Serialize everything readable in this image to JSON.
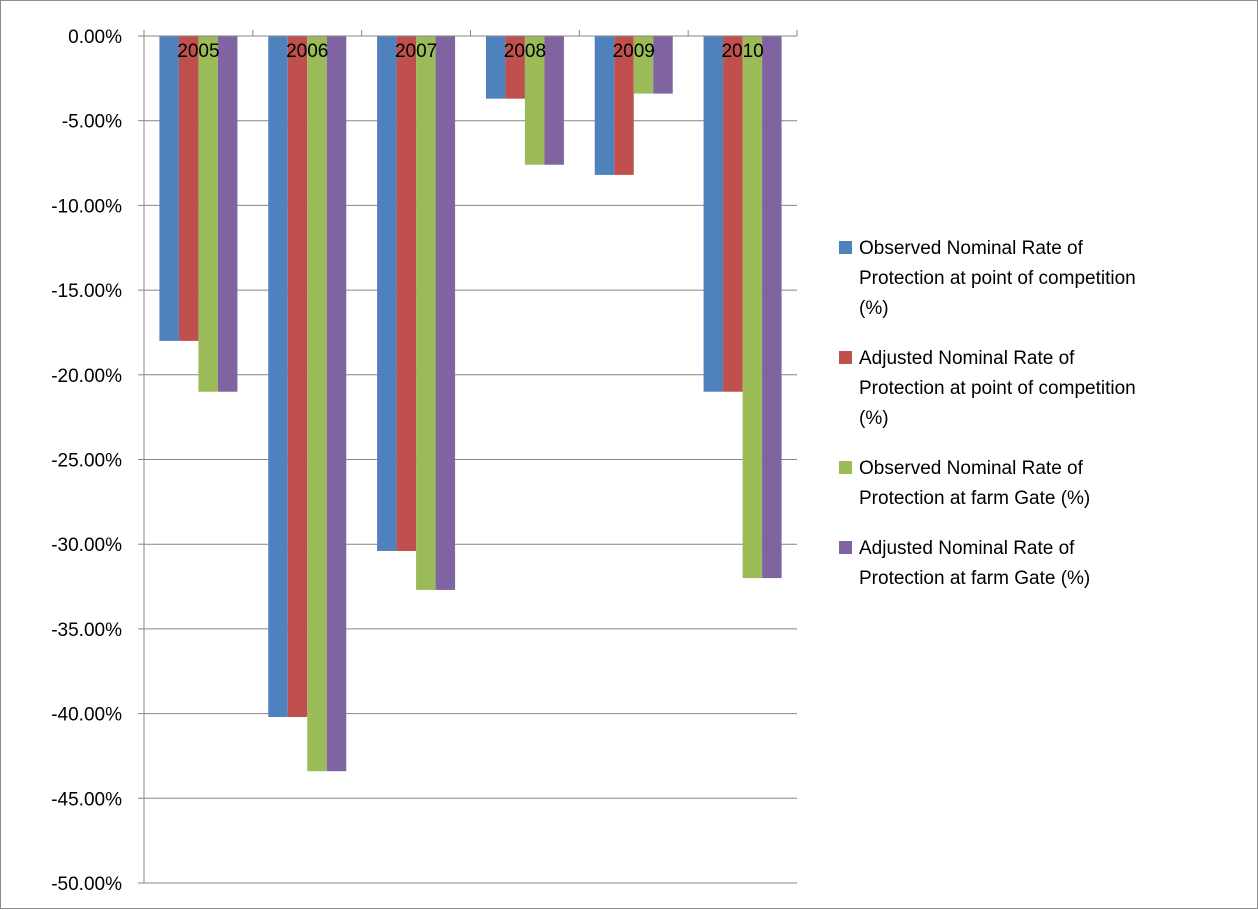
{
  "chart_data": {
    "type": "bar",
    "title": "",
    "xlabel": "",
    "ylabel": "",
    "ylim": [
      -50,
      0
    ],
    "ytick_step": 5,
    "ytick_format": "percent_2dp",
    "grid": true,
    "legend_position": "right",
    "categories": [
      "2005",
      "2006",
      "2007",
      "2008",
      "2009",
      "2010"
    ],
    "series": [
      {
        "name_lines": [
          "Observed Nominal Rate of",
          "Protection at point of competition",
          "(%)"
        ],
        "color": "#4F81BD",
        "values": [
          -18.0,
          -40.2,
          -30.4,
          -3.7,
          -8.2,
          -21.0
        ]
      },
      {
        "name_lines": [
          "Adjusted Nominal Rate of",
          "Protection at point of competition",
          "(%)"
        ],
        "color": "#C0504D",
        "values": [
          -18.0,
          -40.2,
          -30.4,
          -3.7,
          -8.2,
          -21.0
        ]
      },
      {
        "name_lines": [
          "Observed Nominal Rate of",
          "Protection at farm Gate (%)"
        ],
        "color": "#9BBB59",
        "values": [
          -21.0,
          -43.4,
          -32.7,
          -7.6,
          -3.4,
          -32.0
        ]
      },
      {
        "name_lines": [
          "Adjusted Nominal Rate of",
          "Protection at farm Gate (%)"
        ],
        "color": "#8064A2",
        "values": [
          -21.0,
          -43.4,
          -32.7,
          -7.6,
          -3.4,
          -32.0
        ]
      }
    ]
  }
}
